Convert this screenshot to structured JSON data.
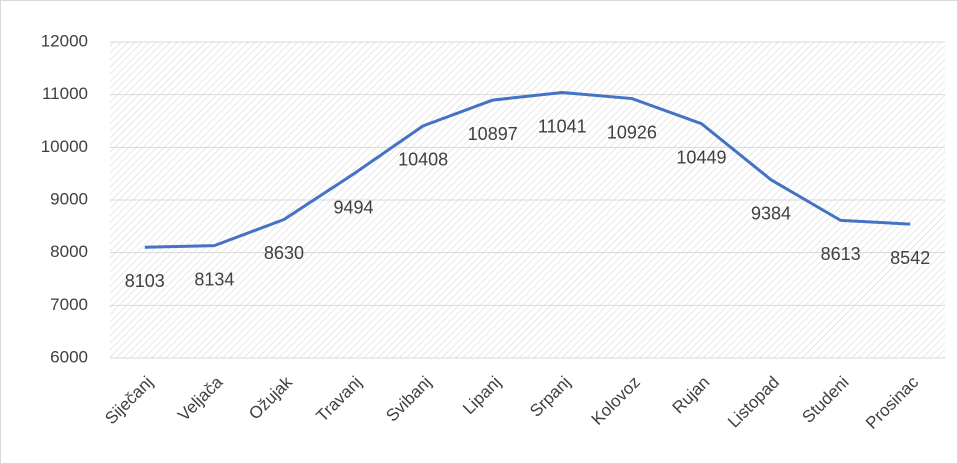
{
  "chart_data": {
    "type": "line",
    "categories": [
      "Siječanj",
      "Veljača",
      "Ožujak",
      "Travanj",
      "Svibanj",
      "Lipanj",
      "Srpanj",
      "Kolovoz",
      "Rujan",
      "Listopad",
      "Studeni",
      "Prosinac"
    ],
    "values": [
      8103,
      8134,
      8630,
      9494,
      10408,
      10897,
      11041,
      10926,
      10449,
      9384,
      8613,
      8542
    ],
    "color": "#4472c4",
    "ylim": [
      6000,
      12000
    ],
    "yticks": [
      6000,
      7000,
      8000,
      9000,
      10000,
      11000,
      12000
    ],
    "grid": true
  }
}
